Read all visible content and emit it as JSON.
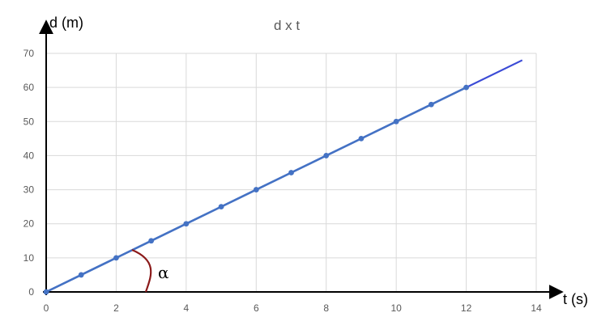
{
  "chart_data": {
    "type": "scatter",
    "title": "d x t",
    "xlabel": "t (s)",
    "ylabel": "d (m)",
    "xlim": [
      0,
      14
    ],
    "ylim": [
      0,
      70
    ],
    "xticks": [
      0,
      2,
      4,
      6,
      8,
      10,
      12,
      14
    ],
    "yticks": [
      0,
      10,
      20,
      30,
      40,
      50,
      60,
      70
    ],
    "grid": true,
    "series": [
      {
        "x": [
          0,
          1,
          2,
          3,
          4,
          5,
          6,
          7,
          8,
          9,
          10,
          11,
          12
        ],
        "y": [
          0,
          5,
          10,
          15,
          20,
          25,
          30,
          35,
          40,
          45,
          50,
          55,
          60
        ],
        "color": "#4472c4"
      }
    ],
    "trendline": {
      "x": [
        0,
        13.6
      ],
      "y": [
        0,
        68
      ],
      "color": "#3b4bd6"
    },
    "annotation": {
      "label": "α",
      "color": "#8b1a1a"
    }
  }
}
